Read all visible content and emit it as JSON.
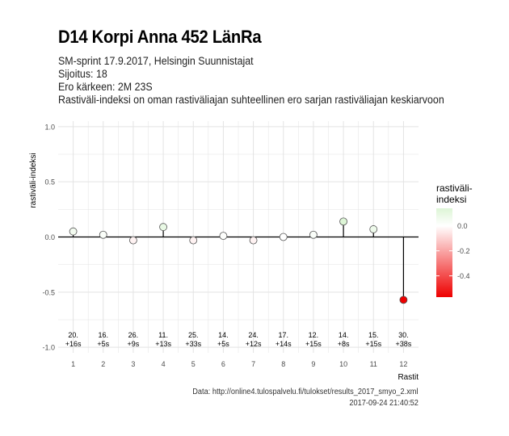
{
  "header": {
    "title": "D14 Korpi Anna 452 LänRa",
    "event_line": "SM-sprint 17.9.2017, Helsingin Suunnistajat",
    "placement_line": "Sijoitus: 18",
    "gap_line": "Ero kärkeen: 2M 23S",
    "description_line": "Rastiväli-indeksi on oman rastiväliajan suhteellinen ero sarjan rastiväliajan keskiarvoon"
  },
  "caption": {
    "source": "Data: http://online4.tulospalvelu.fi/tulokset/results_2017_smyo_2.xml",
    "timestamp": "2017-09-24 21:40:52"
  },
  "chart_data": {
    "type": "scatter",
    "xlabel": "Rastit",
    "ylabel": "rastiväli-indeksi",
    "xlim": [
      0.5,
      12.5
    ],
    "ylim": [
      -1.05,
      1.05
    ],
    "x_ticks": [
      1,
      2,
      3,
      4,
      5,
      6,
      7,
      8,
      9,
      10,
      11,
      12
    ],
    "y_ticks": [
      1.0,
      0.5,
      0.0,
      -0.5,
      -1.0
    ],
    "y_tick_labels": [
      "1.0",
      "0.5",
      "0.0",
      "-0.5",
      "-1.0"
    ],
    "grid": true,
    "points": [
      {
        "x": 1,
        "y": 0.05,
        "rank": "20.",
        "split": "+16s"
      },
      {
        "x": 2,
        "y": 0.02,
        "rank": "16.",
        "split": "+5s"
      },
      {
        "x": 3,
        "y": -0.03,
        "rank": "26.",
        "split": "+9s"
      },
      {
        "x": 4,
        "y": 0.09,
        "rank": "11.",
        "split": "+13s"
      },
      {
        "x": 5,
        "y": -0.03,
        "rank": "25.",
        "split": "+33s"
      },
      {
        "x": 6,
        "y": 0.01,
        "rank": "14.",
        "split": "+5s"
      },
      {
        "x": 7,
        "y": -0.03,
        "rank": "24.",
        "split": "+12s"
      },
      {
        "x": 8,
        "y": 0.0,
        "rank": "17.",
        "split": "+14s"
      },
      {
        "x": 9,
        "y": 0.02,
        "rank": "12.",
        "split": "+15s"
      },
      {
        "x": 10,
        "y": 0.14,
        "rank": "14.",
        "split": "+8s"
      },
      {
        "x": 11,
        "y": 0.07,
        "rank": "15.",
        "split": "+15s"
      },
      {
        "x": 12,
        "y": -0.57,
        "rank": "30.",
        "split": "+38s"
      }
    ],
    "label_y": -0.91,
    "legend": {
      "title": "rastiväli-\nindeksi",
      "position": "right",
      "range": [
        -0.57,
        0.14
      ],
      "ticks": [
        0.0,
        -0.2,
        -0.4
      ],
      "tick_labels": [
        "0.0",
        "-0.2",
        "-0.4"
      ]
    },
    "colors": {
      "low": "#ee0000",
      "mid": "#ffffff",
      "high": "#ddf5d6",
      "grid": "#e3e3e3",
      "stem": "#000000"
    }
  }
}
